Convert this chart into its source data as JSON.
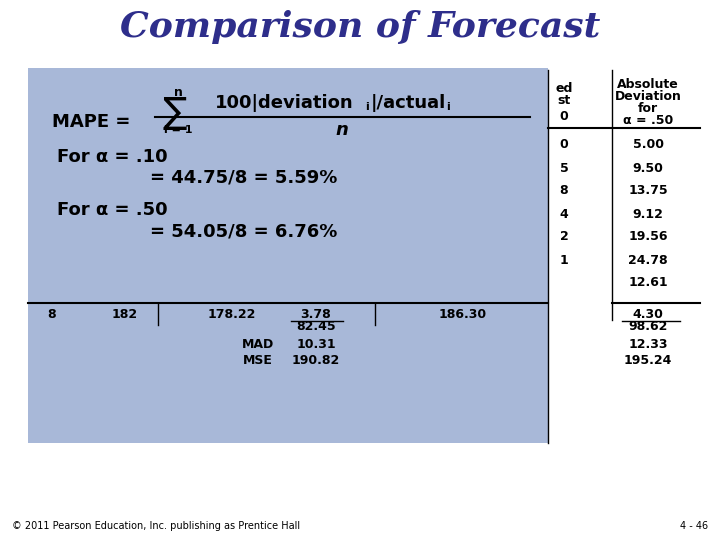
{
  "title": "Comparison of Forecast",
  "title_color": "#2E2E8B",
  "title_fontsize": 26,
  "bg_color": "#A8B8D8",
  "white_bg": "#FFFFFF",
  "mape_label": "MAPE =",
  "for_alpha_10": "For α = .10",
  "for_alpha_10_val": "= 44.75/8 = 5.59%",
  "for_alpha_50": "For α = .50",
  "for_alpha_50_val": "= 54.05/8 = 6.76%",
  "col2_partial_header": [
    "ed",
    "st",
    "0"
  ],
  "col3_header": [
    "Absolute",
    "Deviation",
    "for",
    "α = .50"
  ],
  "col3_data": [
    "5.00",
    "9.50",
    "13.75",
    "9.12",
    "19.56",
    "24.78",
    "12.61"
  ],
  "col2_partial_data": [
    "0",
    "5",
    "8",
    "4",
    "2",
    "1"
  ],
  "sum_row_left": [
    "8",
    "182",
    "178.22",
    "3.78",
    "186.30"
  ],
  "sum_row_right": "4.30",
  "sum_sq": [
    "82.45",
    "98.62"
  ],
  "mad_row": [
    "MAD",
    "10.31",
    "12.33"
  ],
  "mse_row": [
    "MSE",
    "190.82",
    "195.24"
  ],
  "footer": "© 2011 Pearson Education, Inc. publishing as Prentice Hall",
  "page": "4 - 46"
}
